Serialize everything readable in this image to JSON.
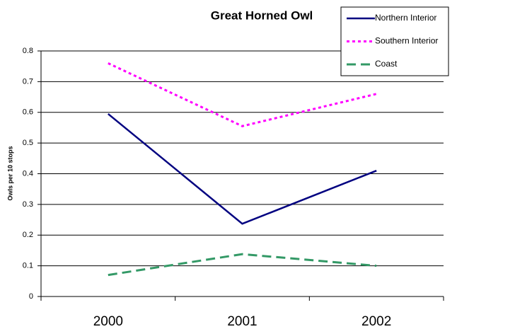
{
  "chart_data": {
    "type": "line",
    "title": "Great Horned Owl",
    "y_label": "Owls per 10 stops",
    "categories": [
      "2000",
      "2001",
      "2002"
    ],
    "series": [
      {
        "name": "Northern Interior",
        "color": "#000080",
        "dash": "solid",
        "values": [
          0.595,
          0.237,
          0.41
        ]
      },
      {
        "name": "Southern Interior",
        "color": "#ff00ff",
        "dash": "dotted",
        "values": [
          0.76,
          0.555,
          0.66
        ]
      },
      {
        "name": "Coast",
        "color": "#339966",
        "dash": "dashed",
        "values": [
          0.07,
          0.138,
          0.1
        ]
      }
    ],
    "ylim": [
      0,
      0.8
    ],
    "yticks": [
      0,
      0.1,
      0.2,
      0.3,
      0.4,
      0.5,
      0.6,
      0.7,
      0.8
    ],
    "grid": true,
    "legend": "top-right"
  }
}
